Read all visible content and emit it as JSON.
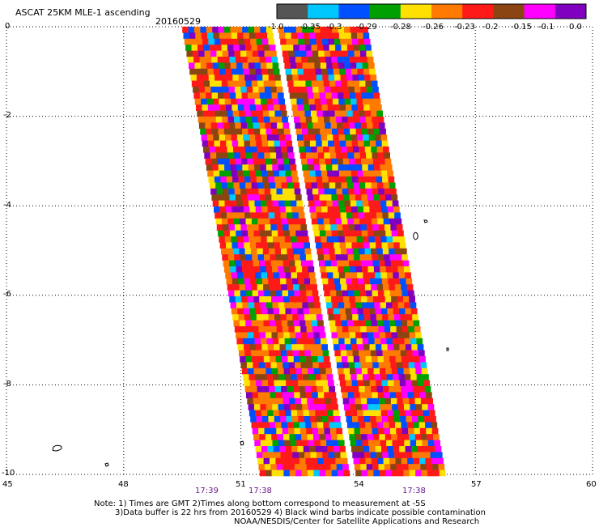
{
  "header": {
    "title": "ASCAT 25KM MLE-1 ascending",
    "date": "20160529"
  },
  "colorbar": {
    "labels": [
      "-1.0",
      "-0.35",
      "-0.3",
      "-0.29",
      "-0.28",
      "-0.26",
      "-0.23",
      "-0.2",
      "-0.15",
      "-0.1",
      "0.0"
    ],
    "colors": [
      "#555555",
      "#00c8ff",
      "#0050ff",
      "#00a000",
      "#ffe000",
      "#ff7a00",
      "#ff1a1a",
      "#8b4513",
      "#ff00ff",
      "#8000c0"
    ]
  },
  "axes": {
    "lat_labels": [
      "0",
      "-2",
      "-4",
      "-6",
      "-8",
      "-10"
    ],
    "lon_labels": [
      "45",
      "48",
      "51",
      "54",
      "57",
      "60"
    ],
    "times": [
      "17:39",
      "17:38",
      "17:38"
    ]
  },
  "footer": {
    "line1": "Note: 1) Times are GMT 2)Times along bottom correspond to measurement at -5S",
    "line2": "3)Data buffer is 22 hrs from 20160529 4) Black wind barbs indicate possible contamination",
    "line3": "NOAA/NESDIS/Center for Satellite Applications and Research"
  },
  "map": {
    "lon_range": [
      45,
      60
    ],
    "lat_range": [
      -10,
      0
    ],
    "swath": {
      "top_lon_range": [
        49.5,
        54.3
      ],
      "bottom_lon_range": [
        51.5,
        56.3
      ]
    }
  }
}
